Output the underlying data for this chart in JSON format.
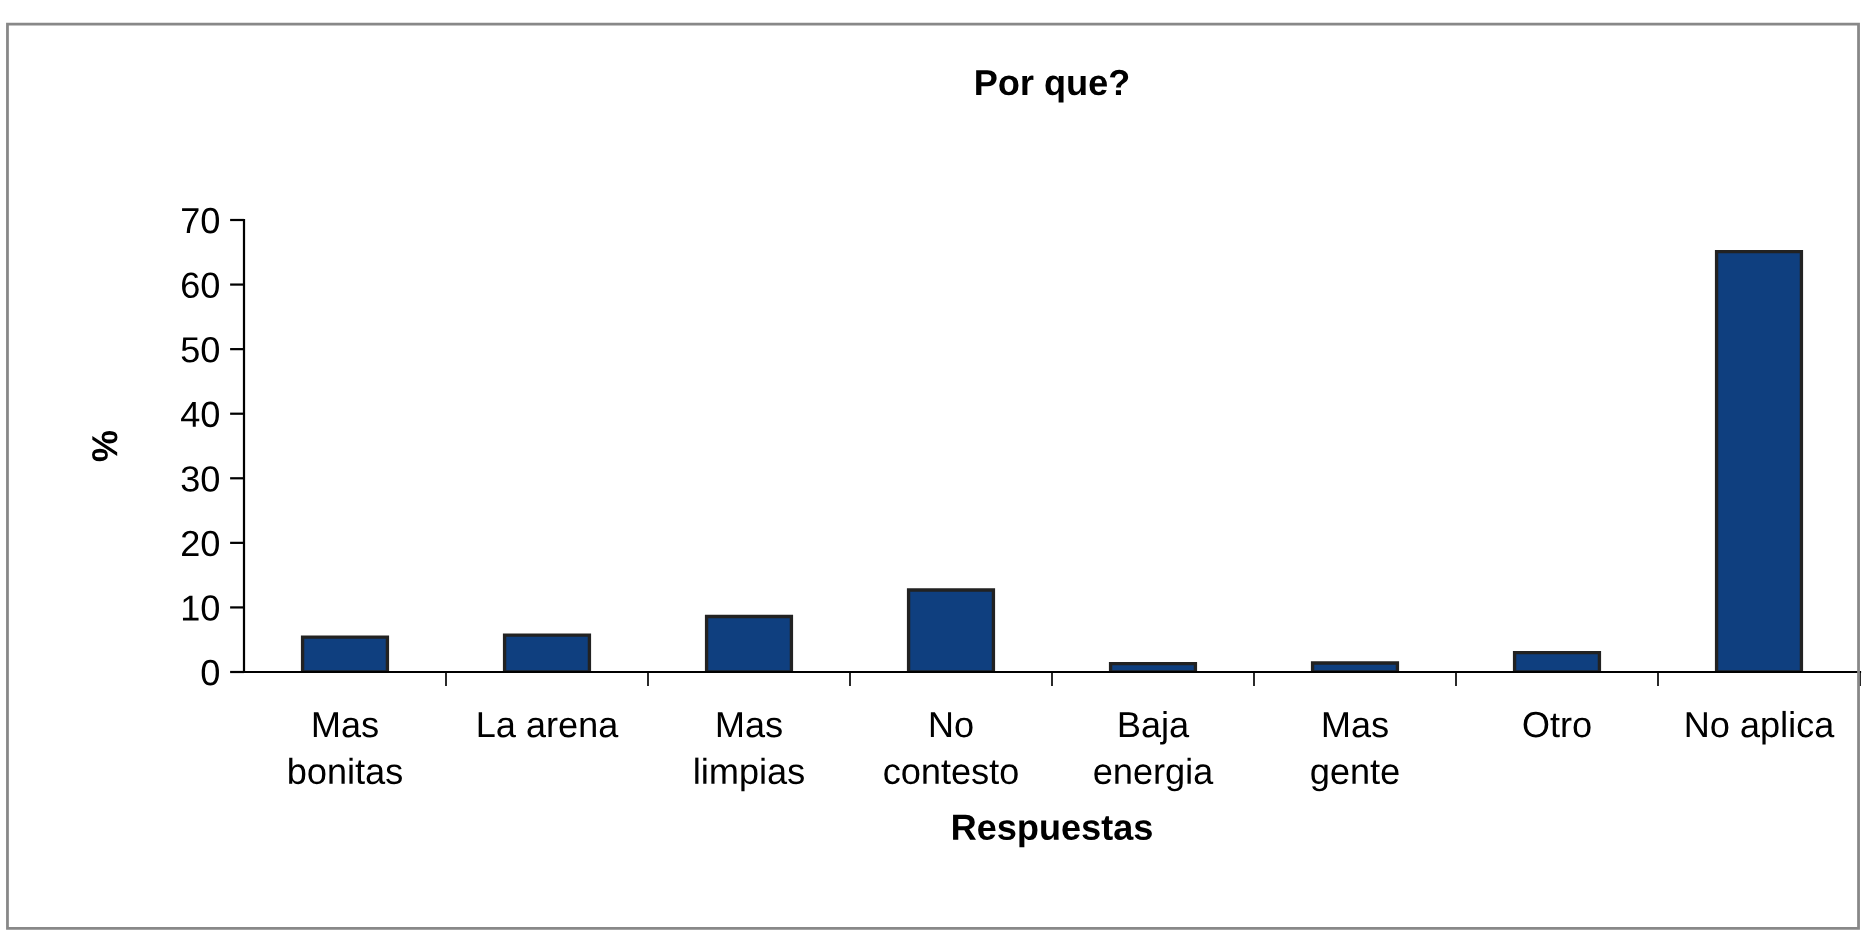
{
  "chart_data": {
    "type": "bar",
    "title": "Por que?",
    "xlabel": "Respuestas",
    "ylabel": "%",
    "categories": [
      "Mas\nbonitas",
      "La arena",
      "Mas\nlimpias",
      "No\ncontesto",
      "Baja\nenergia",
      "Mas\ngente",
      "Otro",
      "No aplica"
    ],
    "values": [
      5.4,
      5.7,
      8.6,
      12.7,
      1.3,
      1.4,
      3.0,
      65.1
    ],
    "color": "#0f3f7f",
    "ylim": [
      0,
      70
    ],
    "yticks": [
      0,
      10,
      20,
      30,
      40,
      50,
      60,
      70
    ],
    "grid": false,
    "legend": false
  }
}
